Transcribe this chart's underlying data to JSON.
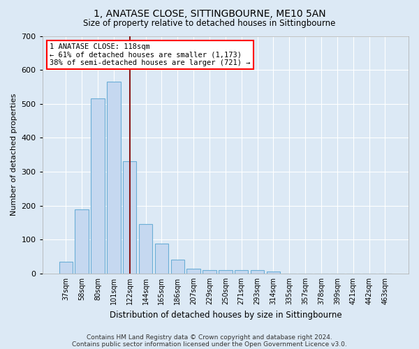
{
  "title": "1, ANATASE CLOSE, SITTINGBOURNE, ME10 5AN",
  "subtitle": "Size of property relative to detached houses in Sittingbourne",
  "xlabel": "Distribution of detached houses by size in Sittingbourne",
  "ylabel": "Number of detached properties",
  "categories": [
    "37sqm",
    "58sqm",
    "80sqm",
    "101sqm",
    "122sqm",
    "144sqm",
    "165sqm",
    "186sqm",
    "207sqm",
    "229sqm",
    "250sqm",
    "271sqm",
    "293sqm",
    "314sqm",
    "335sqm",
    "357sqm",
    "378sqm",
    "399sqm",
    "421sqm",
    "442sqm",
    "463sqm"
  ],
  "values": [
    35,
    190,
    515,
    565,
    330,
    145,
    88,
    42,
    14,
    10,
    10,
    10,
    10,
    5,
    0,
    0,
    0,
    0,
    0,
    0,
    0
  ],
  "bar_color": "#c5d8f0",
  "bar_edge_color": "#6baed6",
  "bg_color": "#dce9f5",
  "grid_color": "#ffffff",
  "annotation_box_text": "1 ANATASE CLOSE: 118sqm\n← 61% of detached houses are smaller (1,173)\n38% of semi-detached houses are larger (721) →",
  "vline_color": "#8b1a1a",
  "vline_x_index": 4,
  "ylim": [
    0,
    700
  ],
  "yticks": [
    0,
    100,
    200,
    300,
    400,
    500,
    600,
    700
  ],
  "footer_line1": "Contains HM Land Registry data © Crown copyright and database right 2024.",
  "footer_line2": "Contains public sector information licensed under the Open Government Licence v3.0."
}
